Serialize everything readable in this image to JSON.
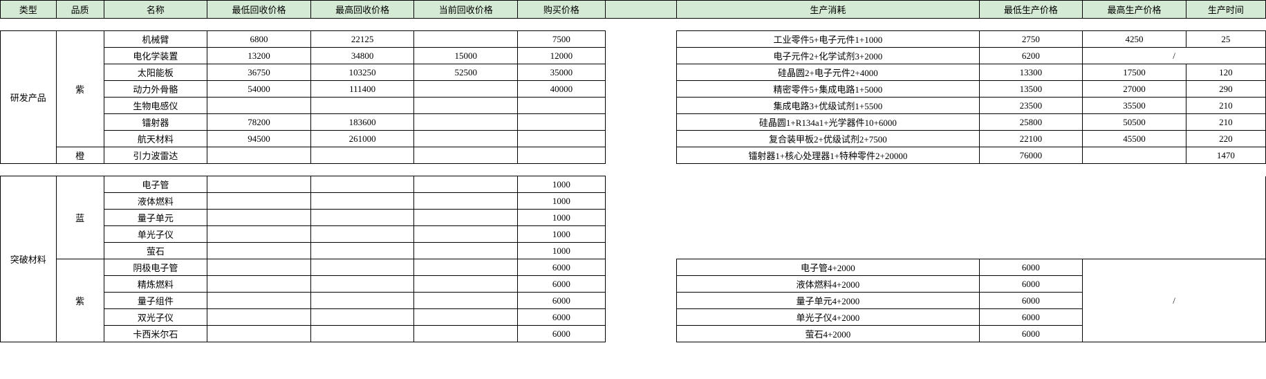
{
  "colors": {
    "header_bg": "#d5ead5",
    "border": "#000000",
    "text": "#000000",
    "bg": "#ffffff"
  },
  "headers": {
    "type": "类型",
    "quality": "品质",
    "name": "名称",
    "min_recycle": "最低回收价格",
    "max_recycle": "最高回收价格",
    "cur_recycle": "当前回收价格",
    "buy_price": "购买价格",
    "consume": "生产消耗",
    "min_prod": "最低生产价格",
    "max_prod": "最高生产价格",
    "prod_time": "生产时间"
  },
  "group1": {
    "type": "研发产品",
    "q_purple": "紫",
    "q_orange": "橙",
    "rows_purple": [
      {
        "name": "机械臂",
        "minr": "6800",
        "maxr": "22125",
        "curr": "",
        "buy": "7500",
        "cons": "工业零件5+电子元件1+1000",
        "minp": "2750",
        "maxp": "4250",
        "time": "25"
      },
      {
        "name": "电化学装置",
        "minr": "13200",
        "maxr": "34800",
        "curr": "15000",
        "buy": "12000",
        "cons": "电子元件2+化学试剂3+2000",
        "minp": "6200",
        "maxp": "/",
        "time": ""
      },
      {
        "name": "太阳能板",
        "minr": "36750",
        "maxr": "103250",
        "curr": "52500",
        "buy": "35000",
        "cons": "硅晶圆2+电子元件2+4000",
        "minp": "13300",
        "maxp": "17500",
        "time": "120"
      },
      {
        "name": "动力外骨骼",
        "minr": "54000",
        "maxr": "111400",
        "curr": "",
        "buy": "40000",
        "cons": "精密零件5+集成电路1+5000",
        "minp": "13500",
        "maxp": "27000",
        "time": "290"
      },
      {
        "name": "生物电感仪",
        "minr": "",
        "maxr": "",
        "curr": "",
        "buy": "",
        "cons": "集成电路3+优级试剂1+5500",
        "minp": "23500",
        "maxp": "35500",
        "time": "210"
      },
      {
        "name": "镭射器",
        "minr": "78200",
        "maxr": "183600",
        "curr": "",
        "buy": "",
        "cons": "硅晶圆1+R134a1+光学器件10+6000",
        "minp": "25800",
        "maxp": "50500",
        "time": "210"
      },
      {
        "name": "航天材料",
        "minr": "94500",
        "maxr": "261000",
        "curr": "",
        "buy": "",
        "cons": "复合装甲板2+优级试剂2+7500",
        "minp": "22100",
        "maxp": "45500",
        "time": "220"
      }
    ],
    "row_orange": {
      "name": "引力波雷达",
      "minr": "",
      "maxr": "",
      "curr": "",
      "buy": "",
      "cons": "镭射器1+核心处理器1+特种零件2+20000",
      "minp": "76000",
      "maxp": "",
      "time": "1470"
    }
  },
  "group2": {
    "type": "突破材料",
    "q_blue": "蓝",
    "q_purple": "紫",
    "rows_blue": [
      {
        "name": "电子管",
        "buy": "1000"
      },
      {
        "name": "液体燃料",
        "buy": "1000"
      },
      {
        "name": "量子单元",
        "buy": "1000"
      },
      {
        "name": "单光子仪",
        "buy": "1000"
      },
      {
        "name": "萤石",
        "buy": "1000"
      }
    ],
    "rows_purple2": [
      {
        "name": "阴极电子管",
        "buy": "6000",
        "cons": "电子管4+2000",
        "minp": "6000"
      },
      {
        "name": "精炼燃料",
        "buy": "6000",
        "cons": "液体燃料4+2000",
        "minp": "6000"
      },
      {
        "name": "量子组件",
        "buy": "6000",
        "cons": "量子单元4+2000",
        "minp": "6000"
      },
      {
        "name": "双光子仪",
        "buy": "6000",
        "cons": "单光子仪4+2000",
        "minp": "6000"
      },
      {
        "name": "卡西米尔石",
        "buy": "6000",
        "cons": "萤石4+2000",
        "minp": "6000"
      }
    ],
    "maxp_slash": "/"
  }
}
